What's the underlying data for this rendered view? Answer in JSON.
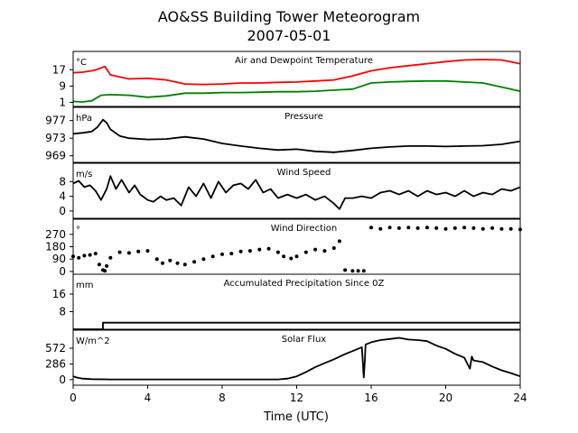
{
  "figure": {
    "title": "AO&SS Building Tower Meteorogram",
    "subtitle": "2007-05-01",
    "xlabel": "Time (UTC)",
    "xlim": [
      0,
      24
    ],
    "xticks": [
      0,
      4,
      8,
      12,
      16,
      20,
      24
    ]
  },
  "chart_data": [
    {
      "type": "line",
      "title": "Air and Dewpoint Temperature",
      "unit": "°C",
      "ylim": [
        -1,
        26
      ],
      "yticks": [
        1,
        9,
        17
      ],
      "series": [
        {
          "color": "#ff0000",
          "x": [
            0,
            0.5,
            1.0,
            1.3,
            1.7,
            2.0,
            3.0,
            4.0,
            5.0,
            6.0,
            7.0,
            8.0,
            9.0,
            10.0,
            11.0,
            12.0,
            13.0,
            14.0,
            15.0,
            16.0,
            17.0,
            18.0,
            19.0,
            20.0,
            21.0,
            22.0,
            23.0,
            24.0
          ],
          "y": [
            15.5,
            15.8,
            16.5,
            17.2,
            18.6,
            14.5,
            12.5,
            12.8,
            12.0,
            10.0,
            9.8,
            10.0,
            10.5,
            10.5,
            10.8,
            11.0,
            11.5,
            12.0,
            14.0,
            16.5,
            18.0,
            19.0,
            20.0,
            21.0,
            21.8,
            22.0,
            21.8,
            20.0
          ]
        },
        {
          "color": "#008000",
          "x": [
            0,
            0.5,
            1.0,
            1.5,
            2.0,
            3.0,
            4.0,
            5.0,
            6.0,
            7.0,
            8.0,
            9.0,
            10.0,
            11.0,
            12.0,
            13.0,
            14.0,
            15.0,
            16.0,
            17.0,
            18.0,
            19.0,
            20.0,
            21.0,
            22.0,
            23.0,
            24.0
          ],
          "y": [
            1.5,
            1.2,
            1.8,
            4.5,
            4.8,
            4.5,
            3.5,
            4.2,
            5.5,
            5.5,
            5.8,
            5.8,
            6.0,
            6.2,
            6.2,
            6.5,
            7.0,
            7.5,
            10.5,
            11.0,
            11.3,
            11.5,
            11.5,
            11.0,
            10.5,
            8.5,
            6.5
          ]
        }
      ]
    },
    {
      "type": "line",
      "title": "Pressure",
      "unit": "hPa",
      "ylim": [
        967.5,
        980
      ],
      "yticks": [
        969,
        973,
        977
      ],
      "series": [
        {
          "color": "#000000",
          "x": [
            0,
            0.5,
            1.0,
            1.3,
            1.6,
            1.8,
            2.0,
            2.5,
            3.0,
            4.0,
            5.0,
            6.0,
            7.0,
            8.0,
            9.0,
            10.0,
            11.0,
            12.0,
            13.0,
            14.0,
            15.0,
            16.0,
            17.0,
            18.0,
            19.0,
            20.0,
            21.0,
            22.0,
            23.0,
            24.0
          ],
          "y": [
            974.0,
            974.2,
            974.5,
            975.5,
            977.2,
            976.5,
            975.0,
            973.5,
            973.0,
            972.7,
            972.8,
            973.3,
            972.8,
            971.8,
            971.2,
            970.7,
            970.3,
            970.5,
            970.0,
            969.8,
            970.2,
            970.7,
            971.0,
            971.2,
            971.2,
            971.1,
            971.2,
            971.3,
            971.6,
            972.3
          ]
        }
      ]
    },
    {
      "type": "line",
      "title": "Wind Speed",
      "unit": "m/s",
      "ylim": [
        -2,
        13
      ],
      "yticks": [
        0,
        4,
        8
      ],
      "series": [
        {
          "color": "#000000",
          "x": [
            0,
            0.3,
            0.6,
            0.9,
            1.2,
            1.5,
            1.8,
            2.0,
            2.3,
            2.6,
            3.0,
            3.3,
            3.6,
            4.0,
            4.3,
            4.7,
            5.0,
            5.4,
            5.8,
            6.2,
            6.6,
            7.0,
            7.4,
            7.8,
            8.2,
            8.6,
            9.0,
            9.4,
            9.8,
            10.2,
            10.6,
            11.0,
            11.5,
            12.0,
            12.5,
            13.0,
            13.5,
            14.0,
            14.3,
            14.6,
            15.0,
            15.5,
            16.0,
            16.5,
            17.0,
            17.5,
            18.0,
            18.5,
            19.0,
            19.5,
            20.0,
            20.5,
            21.0,
            21.5,
            22.0,
            22.5,
            23.0,
            23.5,
            24.0
          ],
          "y": [
            7.5,
            8.2,
            6.5,
            7.0,
            5.5,
            3.0,
            6.0,
            9.5,
            6.0,
            8.5,
            5.0,
            7.0,
            4.5,
            3.0,
            2.5,
            4.0,
            3.0,
            3.5,
            1.5,
            6.5,
            4.0,
            7.5,
            3.5,
            8.0,
            5.0,
            7.0,
            7.5,
            6.0,
            8.5,
            5.0,
            6.0,
            3.5,
            4.5,
            3.5,
            4.5,
            3.0,
            4.0,
            2.0,
            0.5,
            3.5,
            3.5,
            4.0,
            3.5,
            5.0,
            5.5,
            4.5,
            5.5,
            4.0,
            5.5,
            4.5,
            5.0,
            4.0,
            5.5,
            4.0,
            5.0,
            4.5,
            6.0,
            5.5,
            6.5
          ]
        }
      ]
    },
    {
      "type": "scatter",
      "title": "Wind Direction",
      "unit": "°",
      "ylim": [
        -20,
        380
      ],
      "yticks": [
        0,
        90,
        180,
        270
      ],
      "series": [
        {
          "color": "#000000",
          "x": [
            0,
            0.3,
            0.6,
            0.9,
            1.2,
            1.4,
            1.6,
            1.7,
            1.8,
            2.0,
            2.5,
            3.0,
            3.5,
            4.0,
            4.5,
            4.8,
            5.2,
            5.6,
            6.0,
            6.5,
            7.0,
            7.5,
            8.0,
            8.5,
            9.0,
            9.5,
            10.0,
            10.5,
            11.0,
            11.3,
            11.7,
            12.0,
            12.5,
            13.0,
            13.5,
            14.0,
            14.3,
            14.6,
            15.0,
            15.3,
            15.6,
            16.0,
            16.5,
            17.0,
            17.5,
            18.0,
            18.5,
            19.0,
            19.5,
            20.0,
            20.5,
            21.0,
            21.5,
            22.0,
            22.5,
            23.0,
            23.5,
            24.0
          ],
          "y": [
            110,
            100,
            115,
            120,
            130,
            50,
            10,
            5,
            40,
            100,
            140,
            135,
            145,
            150,
            90,
            60,
            80,
            60,
            50,
            70,
            90,
            110,
            125,
            130,
            145,
            150,
            160,
            165,
            140,
            110,
            95,
            110,
            140,
            160,
            150,
            170,
            220,
            10,
            5,
            5,
            5,
            320,
            310,
            320,
            315,
            320,
            315,
            320,
            315,
            310,
            315,
            320,
            315,
            310,
            315,
            310,
            310,
            305
          ]
        }
      ]
    },
    {
      "type": "line",
      "title": "Accumulated Precipitation Since 0Z",
      "unit": "mm",
      "ylim": [
        0,
        25
      ],
      "yticks": [
        8,
        16
      ],
      "series": [
        {
          "color": "#000000",
          "x": [
            0,
            1.6,
            1.6,
            24
          ],
          "y": [
            0,
            0,
            3,
            3
          ]
        }
      ]
    },
    {
      "type": "line",
      "title": "Solar Flux",
      "unit": "W/m^2",
      "ylim": [
        -100,
        900
      ],
      "yticks": [
        0,
        286,
        572
      ],
      "series": [
        {
          "color": "#000000",
          "x": [
            0,
            0.2,
            0.5,
            1.0,
            2.0,
            4.0,
            6.0,
            8.0,
            10.0,
            11.0,
            11.5,
            12.0,
            12.5,
            13.0,
            13.5,
            14.0,
            14.5,
            15.0,
            15.5,
            15.6,
            15.65,
            15.7,
            16.0,
            16.5,
            17.0,
            17.5,
            18.0,
            18.5,
            19.0,
            19.5,
            20.0,
            20.5,
            21.0,
            21.3,
            21.4,
            21.5,
            22.0,
            22.5,
            23.0,
            23.5,
            24.0
          ],
          "y": [
            60,
            40,
            20,
            10,
            5,
            5,
            5,
            5,
            5,
            5,
            20,
            60,
            140,
            230,
            300,
            370,
            450,
            520,
            590,
            40,
            300,
            640,
            680,
            720,
            740,
            760,
            730,
            720,
            700,
            620,
            560,
            470,
            400,
            200,
            420,
            350,
            320,
            240,
            170,
            120,
            60
          ]
        }
      ]
    }
  ]
}
